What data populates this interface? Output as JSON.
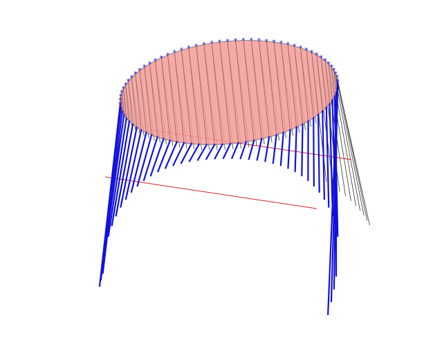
{
  "figure": {
    "disk_color": "#f59b96",
    "disk_edge_color": "#8a7a7a",
    "strut_color": "#1010dd",
    "hidden_strut_color": "#333333",
    "axis_line_color": "#cc2222",
    "marker_color": "#1010dd",
    "marker_count": 44,
    "strut_count": 44,
    "marker_symbol": "*"
  }
}
